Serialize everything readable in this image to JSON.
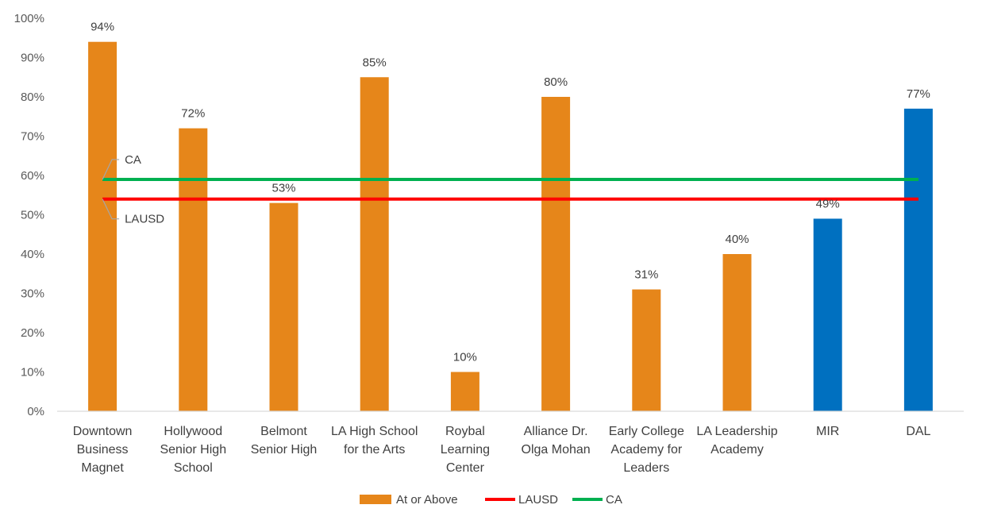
{
  "chart_data": {
    "type": "bar",
    "categories": [
      [
        "Downtown",
        "Business",
        "Magnet"
      ],
      [
        "Hollywood",
        "Senior High",
        "School"
      ],
      [
        "Belmont",
        "Senior High"
      ],
      [
        "LA High School",
        "for the Arts"
      ],
      [
        "Roybal",
        "Learning",
        "Center"
      ],
      [
        "Alliance Dr.",
        "Olga Mohan"
      ],
      [
        "Early College",
        "Academy for",
        "Leaders"
      ],
      [
        "LA Leadership",
        "Academy"
      ],
      [
        "MIR"
      ],
      [
        "DAL"
      ]
    ],
    "series": [
      {
        "name": "At or Above",
        "values": [
          94,
          72,
          53,
          85,
          10,
          80,
          31,
          40,
          49,
          77
        ],
        "labels": [
          "94%",
          "72%",
          "53%",
          "85%",
          "10%",
          "80%",
          "31%",
          "40%",
          "49%",
          "77%"
        ],
        "colors": [
          "#E6861A",
          "#E6861A",
          "#E6861A",
          "#E6861A",
          "#E6861A",
          "#E6861A",
          "#E6861A",
          "#E6861A",
          "#0070C0",
          "#0070C0"
        ]
      }
    ],
    "reference_lines": [
      {
        "name": "LAUSD",
        "value": 54,
        "color": "#FF0000",
        "annotation": "LAUSD"
      },
      {
        "name": "CA",
        "value": 59,
        "color": "#00B050",
        "annotation": "CA"
      }
    ],
    "yticks": [
      "0%",
      "10%",
      "20%",
      "30%",
      "40%",
      "50%",
      "60%",
      "70%",
      "80%",
      "90%",
      "100%"
    ],
    "ylim": [
      0,
      100
    ],
    "grid": false,
    "legend": {
      "position": "bottom",
      "entries": [
        {
          "name": "At or Above",
          "type": "bar",
          "color": "#E6861A"
        },
        {
          "name": "LAUSD",
          "type": "line",
          "color": "#FF0000"
        },
        {
          "name": "CA",
          "type": "line",
          "color": "#00B050"
        }
      ]
    },
    "axis_color": "#D9D9D9",
    "annotation_leader_color": "#A6A6A6"
  }
}
